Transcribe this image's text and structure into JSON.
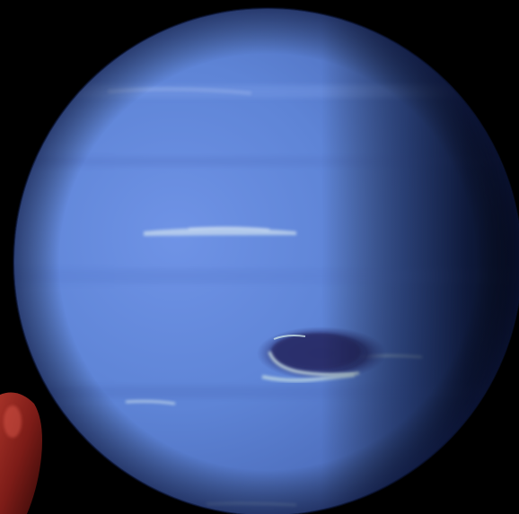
{
  "image": {
    "subject": "planet",
    "colors": {
      "space": "#000000",
      "planet_light": "#6f93e6",
      "planet_mid": "#5a7fcf",
      "planet_dark": "#1c2e6a",
      "night_side": "#050c26",
      "cloud_streak": "#d9e8f0",
      "dark_spot": "#2a2f6a",
      "corner_blob": "#9a2a22"
    }
  }
}
